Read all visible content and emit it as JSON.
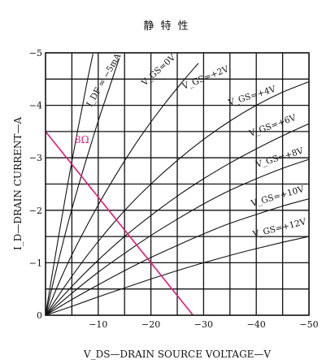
{
  "chart_data": {
    "type": "line",
    "title": "静 特 性",
    "xlabel": "V_DS—DRAIN SOURCE VOLTAGE—V",
    "ylabel": "I_D—DRAIN CURRENT—A",
    "xlim": [
      0,
      -50
    ],
    "ylim": [
      0,
      -5
    ],
    "x_ticks": [
      -10,
      -20,
      -30,
      -40,
      -50
    ],
    "x_tick_labels": [
      "−10",
      "−20",
      "−30",
      "−40",
      "−50"
    ],
    "y_ticks": [
      0,
      -1,
      -2,
      -3,
      -4,
      -5
    ],
    "y_tick_labels": [
      "0",
      "−1",
      "−2",
      "−3",
      "−4",
      "−5"
    ],
    "grid": true,
    "colors": {
      "curves": "#111111",
      "load_line": "#e0197a"
    },
    "series": [
      {
        "label": "I_DF = −5mA",
        "x": [
          0,
          -1,
          -2,
          -3,
          -4,
          -5,
          -6,
          -7,
          -8,
          -9
        ],
        "y": [
          0,
          -0.62,
          -1.22,
          -1.8,
          -2.38,
          -2.93,
          -3.47,
          -3.98,
          -4.5,
          -4.98
        ]
      },
      {
        "label": "V_GS=0V",
        "x": [
          0,
          -2,
          -4,
          -6,
          -8,
          -10,
          -12,
          -14
        ],
        "y": [
          0,
          -0.85,
          -1.65,
          -2.38,
          -3.05,
          -3.7,
          -4.3,
          -4.9
        ]
      },
      {
        "label": "V_GS=+2V",
        "x": [
          0,
          -3,
          -6,
          -10,
          -14,
          -18,
          -22,
          -26,
          -29
        ],
        "y": [
          0,
          -0.72,
          -1.35,
          -2.1,
          -2.78,
          -3.4,
          -3.95,
          -4.45,
          -4.8
        ]
      },
      {
        "label": "V_GS=+4V",
        "x": [
          0,
          -4,
          -8,
          -12,
          -16,
          -20,
          -25,
          -30,
          -35,
          -40,
          -45,
          -50
        ],
        "y": [
          0,
          -0.6,
          -1.15,
          -1.65,
          -2.1,
          -2.5,
          -2.95,
          -3.35,
          -3.7,
          -4.0,
          -4.25,
          -4.45
        ]
      },
      {
        "label": "V_GS=+6V",
        "x": [
          0,
          -5,
          -10,
          -15,
          -20,
          -25,
          -30,
          -35,
          -40,
          -45,
          -50
        ],
        "y": [
          0,
          -0.55,
          -1.05,
          -1.5,
          -1.9,
          -2.27,
          -2.6,
          -2.9,
          -3.17,
          -3.42,
          -3.65
        ]
      },
      {
        "label": "V_GS=+8V",
        "x": [
          0,
          -5,
          -10,
          -15,
          -20,
          -25,
          -30,
          -35,
          -40,
          -45,
          -50
        ],
        "y": [
          0,
          -0.42,
          -0.82,
          -1.18,
          -1.52,
          -1.83,
          -2.12,
          -2.38,
          -2.6,
          -2.8,
          -2.97
        ]
      },
      {
        "label": "V_GS=+10V",
        "x": [
          0,
          -5,
          -10,
          -15,
          -20,
          -25,
          -30,
          -35,
          -40,
          -45,
          -50
        ],
        "y": [
          0,
          -0.3,
          -0.58,
          -0.85,
          -1.1,
          -1.33,
          -1.55,
          -1.75,
          -1.92,
          -2.08,
          -2.22
        ]
      },
      {
        "label": "V_GS=+12V",
        "x": [
          0,
          -5,
          -10,
          -15,
          -20,
          -25,
          -30,
          -35,
          -40,
          -45,
          -50
        ],
        "y": [
          0,
          -0.17,
          -0.35,
          -0.52,
          -0.69,
          -0.85,
          -1.0,
          -1.14,
          -1.27,
          -1.39,
          -1.5
        ]
      }
    ],
    "load_line": {
      "label": "8Ω",
      "x": [
        0,
        -28
      ],
      "y": [
        -3.5,
        0
      ]
    }
  }
}
